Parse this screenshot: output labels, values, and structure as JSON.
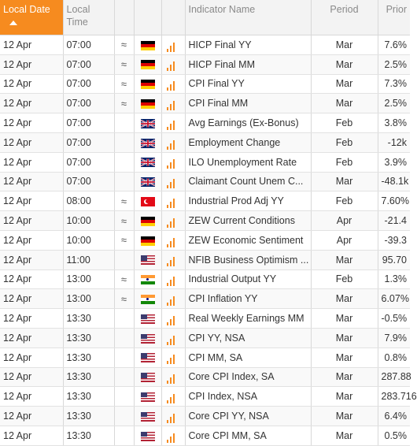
{
  "header": {
    "local_date": "Local Date",
    "local_time": "Local Time",
    "indicator_name": "Indicator Name",
    "period": "Period",
    "prior": "Prior"
  },
  "accent_color": "#f68b1f",
  "rows": [
    {
      "date": "12 Apr",
      "time": "07:00",
      "vol": "≈",
      "flag": "de",
      "name": "HICP Final YY",
      "period": "Mar",
      "prior": "7.6%"
    },
    {
      "date": "12 Apr",
      "time": "07:00",
      "vol": "≈",
      "flag": "de",
      "name": "HICP Final MM",
      "period": "Mar",
      "prior": "2.5%"
    },
    {
      "date": "12 Apr",
      "time": "07:00",
      "vol": "≈",
      "flag": "de",
      "name": "CPI Final YY",
      "period": "Mar",
      "prior": "7.3%"
    },
    {
      "date": "12 Apr",
      "time": "07:00",
      "vol": "≈",
      "flag": "de",
      "name": "CPI Final MM",
      "period": "Mar",
      "prior": "2.5%"
    },
    {
      "date": "12 Apr",
      "time": "07:00",
      "vol": "",
      "flag": "gb",
      "name": "Avg Earnings (Ex-Bonus)",
      "period": "Feb",
      "prior": "3.8%"
    },
    {
      "date": "12 Apr",
      "time": "07:00",
      "vol": "",
      "flag": "gb",
      "name": "Employment Change",
      "period": "Feb",
      "prior": "-12k"
    },
    {
      "date": "12 Apr",
      "time": "07:00",
      "vol": "",
      "flag": "gb",
      "name": "ILO Unemployment Rate",
      "period": "Feb",
      "prior": "3.9%"
    },
    {
      "date": "12 Apr",
      "time": "07:00",
      "vol": "",
      "flag": "gb",
      "name": "Claimant Count Unem C...",
      "period": "Mar",
      "prior": "-48.1k"
    },
    {
      "date": "12 Apr",
      "time": "08:00",
      "vol": "≈",
      "flag": "tr",
      "name": "Industrial Prod Adj YY",
      "period": "Feb",
      "prior": "7.60%"
    },
    {
      "date": "12 Apr",
      "time": "10:00",
      "vol": "≈",
      "flag": "de",
      "name": "ZEW Current Conditions",
      "period": "Apr",
      "prior": "-21.4"
    },
    {
      "date": "12 Apr",
      "time": "10:00",
      "vol": "≈",
      "flag": "de",
      "name": "ZEW Economic Sentiment",
      "period": "Apr",
      "prior": "-39.3"
    },
    {
      "date": "12 Apr",
      "time": "11:00",
      "vol": "",
      "flag": "us",
      "name": "NFIB Business Optimism ...",
      "period": "Mar",
      "prior": "95.70"
    },
    {
      "date": "12 Apr",
      "time": "13:00",
      "vol": "≈",
      "flag": "in",
      "name": "Industrial Output YY",
      "period": "Feb",
      "prior": "1.3%"
    },
    {
      "date": "12 Apr",
      "time": "13:00",
      "vol": "≈",
      "flag": "in",
      "name": "CPI Inflation YY",
      "period": "Mar",
      "prior": "6.07%"
    },
    {
      "date": "12 Apr",
      "time": "13:30",
      "vol": "",
      "flag": "us",
      "name": "Real Weekly Earnings MM",
      "period": "Mar",
      "prior": "-0.5%"
    },
    {
      "date": "12 Apr",
      "time": "13:30",
      "vol": "",
      "flag": "us",
      "name": "CPI YY, NSA",
      "period": "Mar",
      "prior": "7.9%"
    },
    {
      "date": "12 Apr",
      "time": "13:30",
      "vol": "",
      "flag": "us",
      "name": "CPI MM, SA",
      "period": "Mar",
      "prior": "0.8%"
    },
    {
      "date": "12 Apr",
      "time": "13:30",
      "vol": "",
      "flag": "us",
      "name": "Core CPI Index, SA",
      "period": "Mar",
      "prior": "287.88"
    },
    {
      "date": "12 Apr",
      "time": "13:30",
      "vol": "",
      "flag": "us",
      "name": "CPI Index, NSA",
      "period": "Mar",
      "prior": "283.716"
    },
    {
      "date": "12 Apr",
      "time": "13:30",
      "vol": "",
      "flag": "us",
      "name": "Core CPI YY, NSA",
      "period": "Mar",
      "prior": "6.4%"
    },
    {
      "date": "12 Apr",
      "time": "13:30",
      "vol": "",
      "flag": "us",
      "name": "Core CPI MM, SA",
      "period": "Mar",
      "prior": "0.5%"
    }
  ]
}
